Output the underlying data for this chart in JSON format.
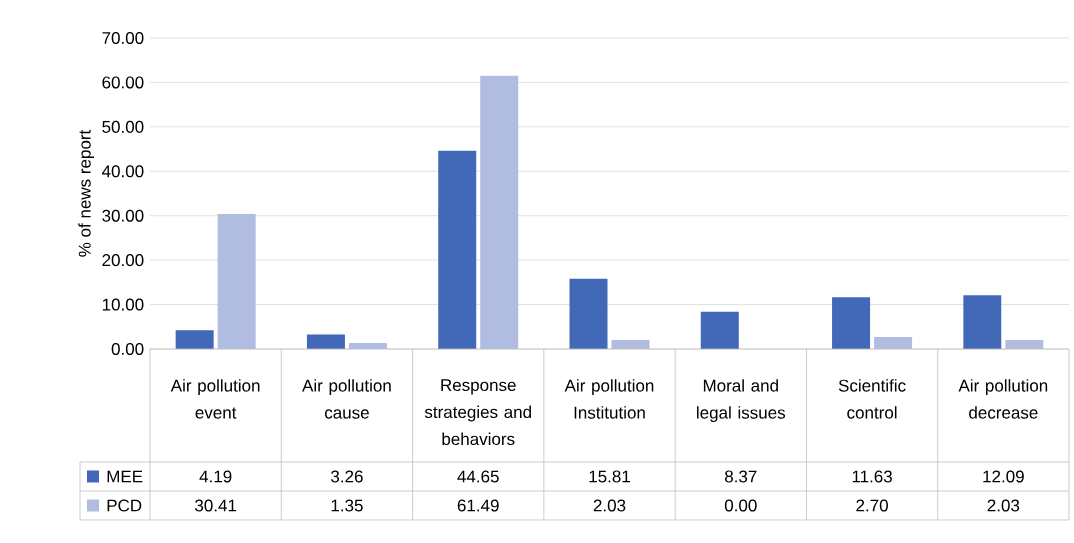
{
  "chart_data": {
    "type": "bar",
    "ylabel": "% of news report",
    "categories": [
      "Air pollution event",
      "Air pollution cause",
      "Response strategies and behaviors",
      "Air pollution Institution",
      "Moral and legal issues",
      "Scientific control",
      "Air pollution decrease"
    ],
    "series": [
      {
        "name": "MEE",
        "color": "#4169b8",
        "values": [
          4.19,
          3.26,
          44.65,
          15.81,
          8.37,
          11.63,
          12.09
        ],
        "value_labels": [
          "4.19",
          "3.26",
          "44.65",
          "15.81",
          "8.37",
          "11.63",
          "12.09"
        ]
      },
      {
        "name": "PCD",
        "color": "#b0bde0",
        "values": [
          30.41,
          1.35,
          61.49,
          2.03,
          0.0,
          2.7,
          2.03
        ],
        "value_labels": [
          "30.41",
          "1.35",
          "61.49",
          "2.03",
          "0.00",
          "2.70",
          "2.03"
        ]
      }
    ],
    "ylim": [
      0,
      70
    ],
    "yticks": [
      {
        "value": 0,
        "label": "0.00"
      },
      {
        "value": 10,
        "label": "10.00"
      },
      {
        "value": 20,
        "label": "20.00"
      },
      {
        "value": 30,
        "label": "30.00"
      },
      {
        "value": 40,
        "label": "40.00"
      },
      {
        "value": 50,
        "label": "50.00"
      },
      {
        "value": 60,
        "label": "60.00"
      },
      {
        "value": 70,
        "label": "70.00"
      }
    ],
    "grid": "y",
    "legend": "bottom left"
  }
}
